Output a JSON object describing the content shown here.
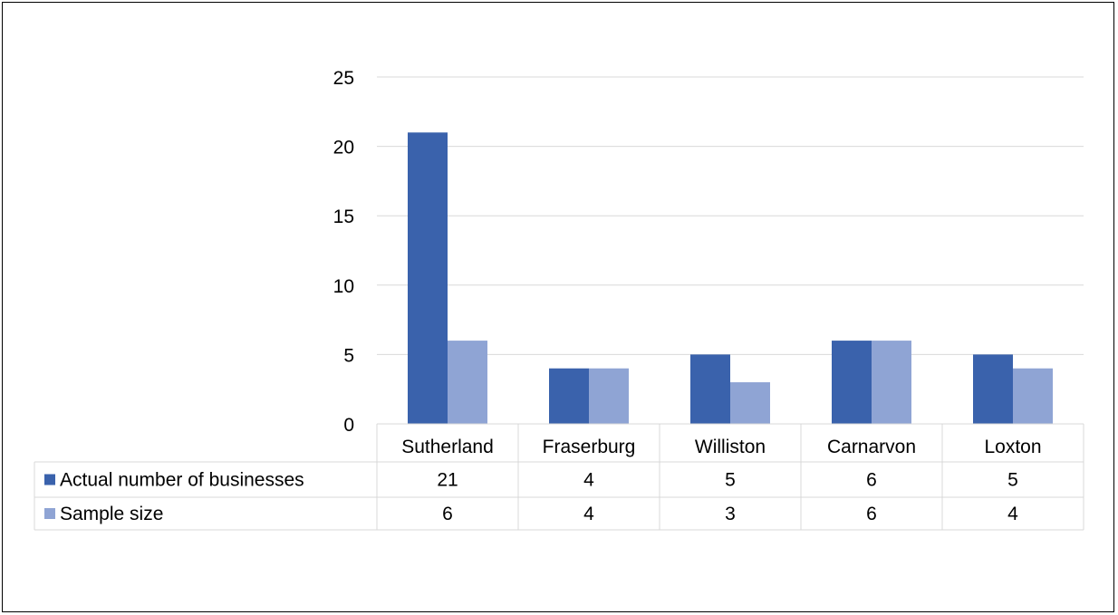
{
  "chart_data": {
    "type": "bar",
    "title": "",
    "xlabel": "",
    "ylabel": "",
    "categories": [
      "Sutherland",
      "Fraserburg",
      "Williston",
      "Carnarvon",
      "Loxton"
    ],
    "series": [
      {
        "name": "Actual number of businesses",
        "values": [
          21,
          4,
          5,
          6,
          5
        ],
        "color": "#3A62AC"
      },
      {
        "name": "Sample size",
        "values": [
          6,
          4,
          3,
          6,
          4
        ],
        "color": "#8FA4D4"
      }
    ],
    "ylim": [
      0,
      25
    ],
    "yticks": [
      0,
      5,
      10,
      15,
      20,
      25
    ],
    "grid": true,
    "legend": "data-table",
    "data_table": true
  }
}
